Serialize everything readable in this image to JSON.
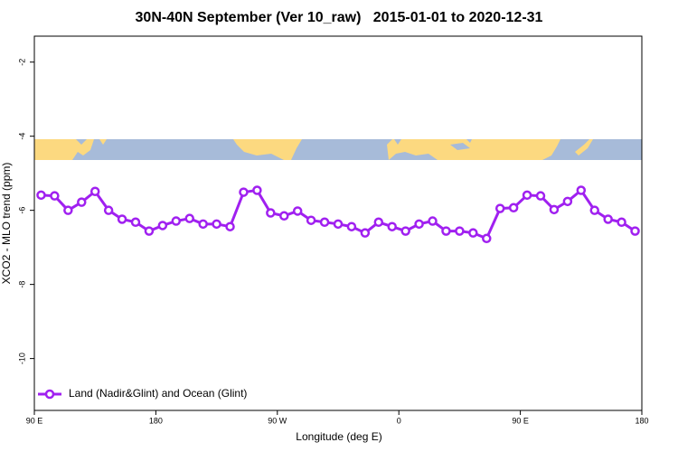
{
  "chart_data": {
    "type": "line",
    "title": "30N-40N September (Ver 10_raw)   2015-01-01 to 2020-12-31",
    "x_label": "Longitude (deg E)",
    "y_label": "XCO2 - MLO trend (ppm)",
    "x": [
      95,
      105,
      115,
      125,
      135,
      145,
      155,
      165,
      175,
      185,
      195,
      205,
      215,
      225,
      235,
      245,
      255,
      265,
      275,
      285,
      295,
      305,
      315,
      325,
      335,
      345,
      355,
      365,
      375,
      385,
      395,
      405,
      415,
      425,
      435,
      445,
      455,
      465,
      475,
      485,
      495,
      505,
      515,
      525,
      535
    ],
    "series": [
      {
        "name": "Land (Nadir&Glint) and Ocean (Glint)",
        "color": "#a020f0",
        "values": [
          -5.59,
          -5.61,
          -6.0,
          -5.78,
          -5.49,
          -6.0,
          -6.24,
          -6.32,
          -6.56,
          -6.41,
          -6.29,
          -6.22,
          -6.37,
          -6.37,
          -6.44,
          -5.51,
          -5.46,
          -6.07,
          -6.15,
          -6.02,
          -6.27,
          -6.32,
          -6.37,
          -6.44,
          -6.61,
          -6.32,
          -6.44,
          -6.56,
          -6.37,
          -6.29,
          -6.56,
          -6.56,
          -6.61,
          -6.76,
          -5.95,
          -5.93,
          -5.59,
          -5.61,
          -5.98,
          -5.76,
          -5.46,
          -6.0,
          -6.24,
          -6.32,
          -6.56
        ]
      }
    ],
    "xlim": [
      90,
      540
    ],
    "xticks": [
      {
        "value": 90,
        "label": "90 E"
      },
      180,
      {
        "value": 270,
        "label": "90 W"
      },
      {
        "value": 360,
        "label": "0"
      },
      {
        "value": 450,
        "label": "90 E"
      },
      {
        "value": 540,
        "label": "180"
      }
    ],
    "ylim": [
      -11.4,
      -1.3
    ],
    "yticks": [
      -10,
      -8,
      -6,
      -4,
      -2
    ],
    "legend": "bottom-left",
    "grid": false
  }
}
